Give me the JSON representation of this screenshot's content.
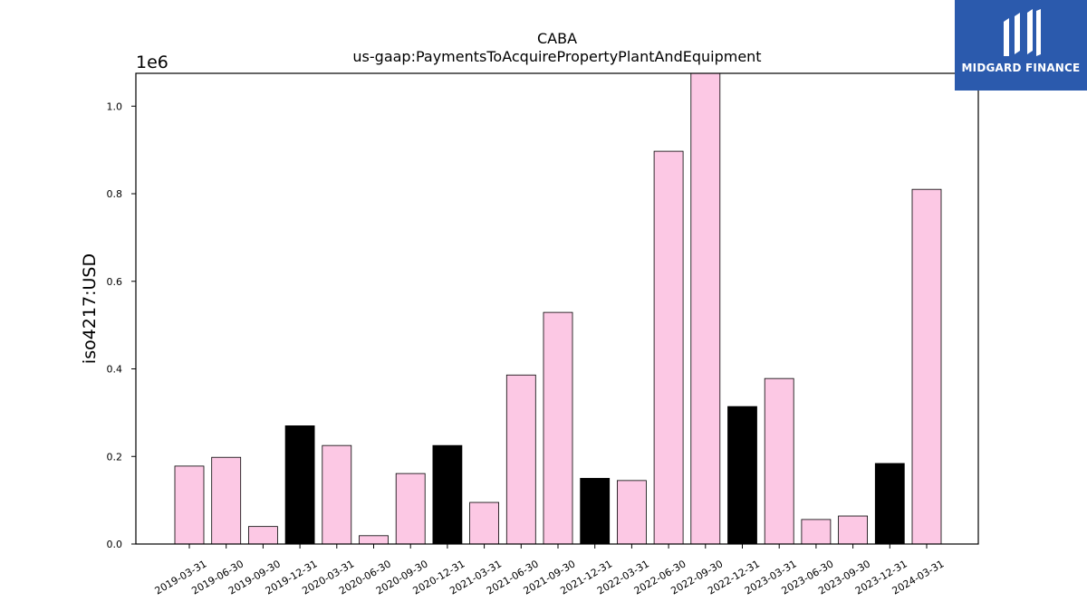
{
  "logo": {
    "text": "MIDGARD FINANCE",
    "background": "#2b5aad"
  },
  "chart_data": {
    "type": "bar",
    "title": "CABA",
    "subtitle": "us-gaap:PaymentsToAcquirePropertyPlantAndEquipment",
    "ylabel": "iso4217:USD",
    "xlabel": "",
    "y_offset_label": "1e6",
    "ylim": [
      0,
      1075000
    ],
    "y_ticks": [
      0.0,
      0.2,
      0.4,
      0.6,
      0.8,
      1.0
    ],
    "y_tick_labels": [
      "0.0",
      "0.2",
      "0.4",
      "0.6",
      "0.8",
      "1.0"
    ],
    "grid": false,
    "categories": [
      "2019-03-31",
      "2019-06-30",
      "2019-09-30",
      "2019-12-31",
      "2020-03-31",
      "2020-06-30",
      "2020-09-30",
      "2020-12-31",
      "2021-03-31",
      "2021-06-30",
      "2021-09-30",
      "2021-12-31",
      "2022-03-31",
      "2022-06-30",
      "2022-09-30",
      "2022-12-31",
      "2023-03-31",
      "2023-06-30",
      "2023-09-30",
      "2023-12-31",
      "2024-03-31"
    ],
    "values": [
      178000,
      198000,
      40000,
      270000,
      225000,
      19000,
      161000,
      225000,
      95000,
      386000,
      529000,
      150000,
      145000,
      897000,
      1075000,
      314000,
      378000,
      56000,
      64000,
      184000,
      810000
    ],
    "bar_colors": [
      "#fcc8e4",
      "#fcc8e4",
      "#fcc8e4",
      "#000000",
      "#fcc8e4",
      "#fcc8e4",
      "#fcc8e4",
      "#000000",
      "#fcc8e4",
      "#fcc8e4",
      "#fcc8e4",
      "#000000",
      "#fcc8e4",
      "#fcc8e4",
      "#fcc8e4",
      "#000000",
      "#fcc8e4",
      "#fcc8e4",
      "#fcc8e4",
      "#000000",
      "#fcc8e4"
    ],
    "colors": {
      "quarter": "#fcc8e4",
      "year_end": "#000000",
      "edge": "#000000"
    }
  }
}
